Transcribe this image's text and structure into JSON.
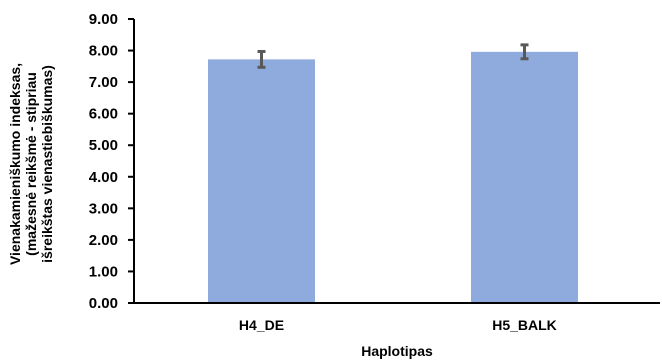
{
  "chart_data": {
    "type": "bar",
    "categories": [
      "H4_DE",
      "H5_BALK"
    ],
    "values": [
      7.72,
      7.96
    ],
    "errors": [
      0.25,
      0.22
    ],
    "xlabel": "Haplotipas",
    "ylabel_lines": [
      "Vienakamieniškumo indeksas,",
      "(mažesnė reikšmė - stipriau",
      "išreikštas vienastiebiškumas)"
    ],
    "ylim": [
      0,
      9
    ],
    "yticks": [
      "0.00",
      "1.00",
      "2.00",
      "3.00",
      "4.00",
      "5.00",
      "6.00",
      "7.00",
      "8.00",
      "9.00"
    ],
    "grid": false,
    "legend": "none",
    "colors": {
      "bar": "#8FAADC",
      "error_bar": "#595959",
      "axis": "#000000"
    }
  }
}
